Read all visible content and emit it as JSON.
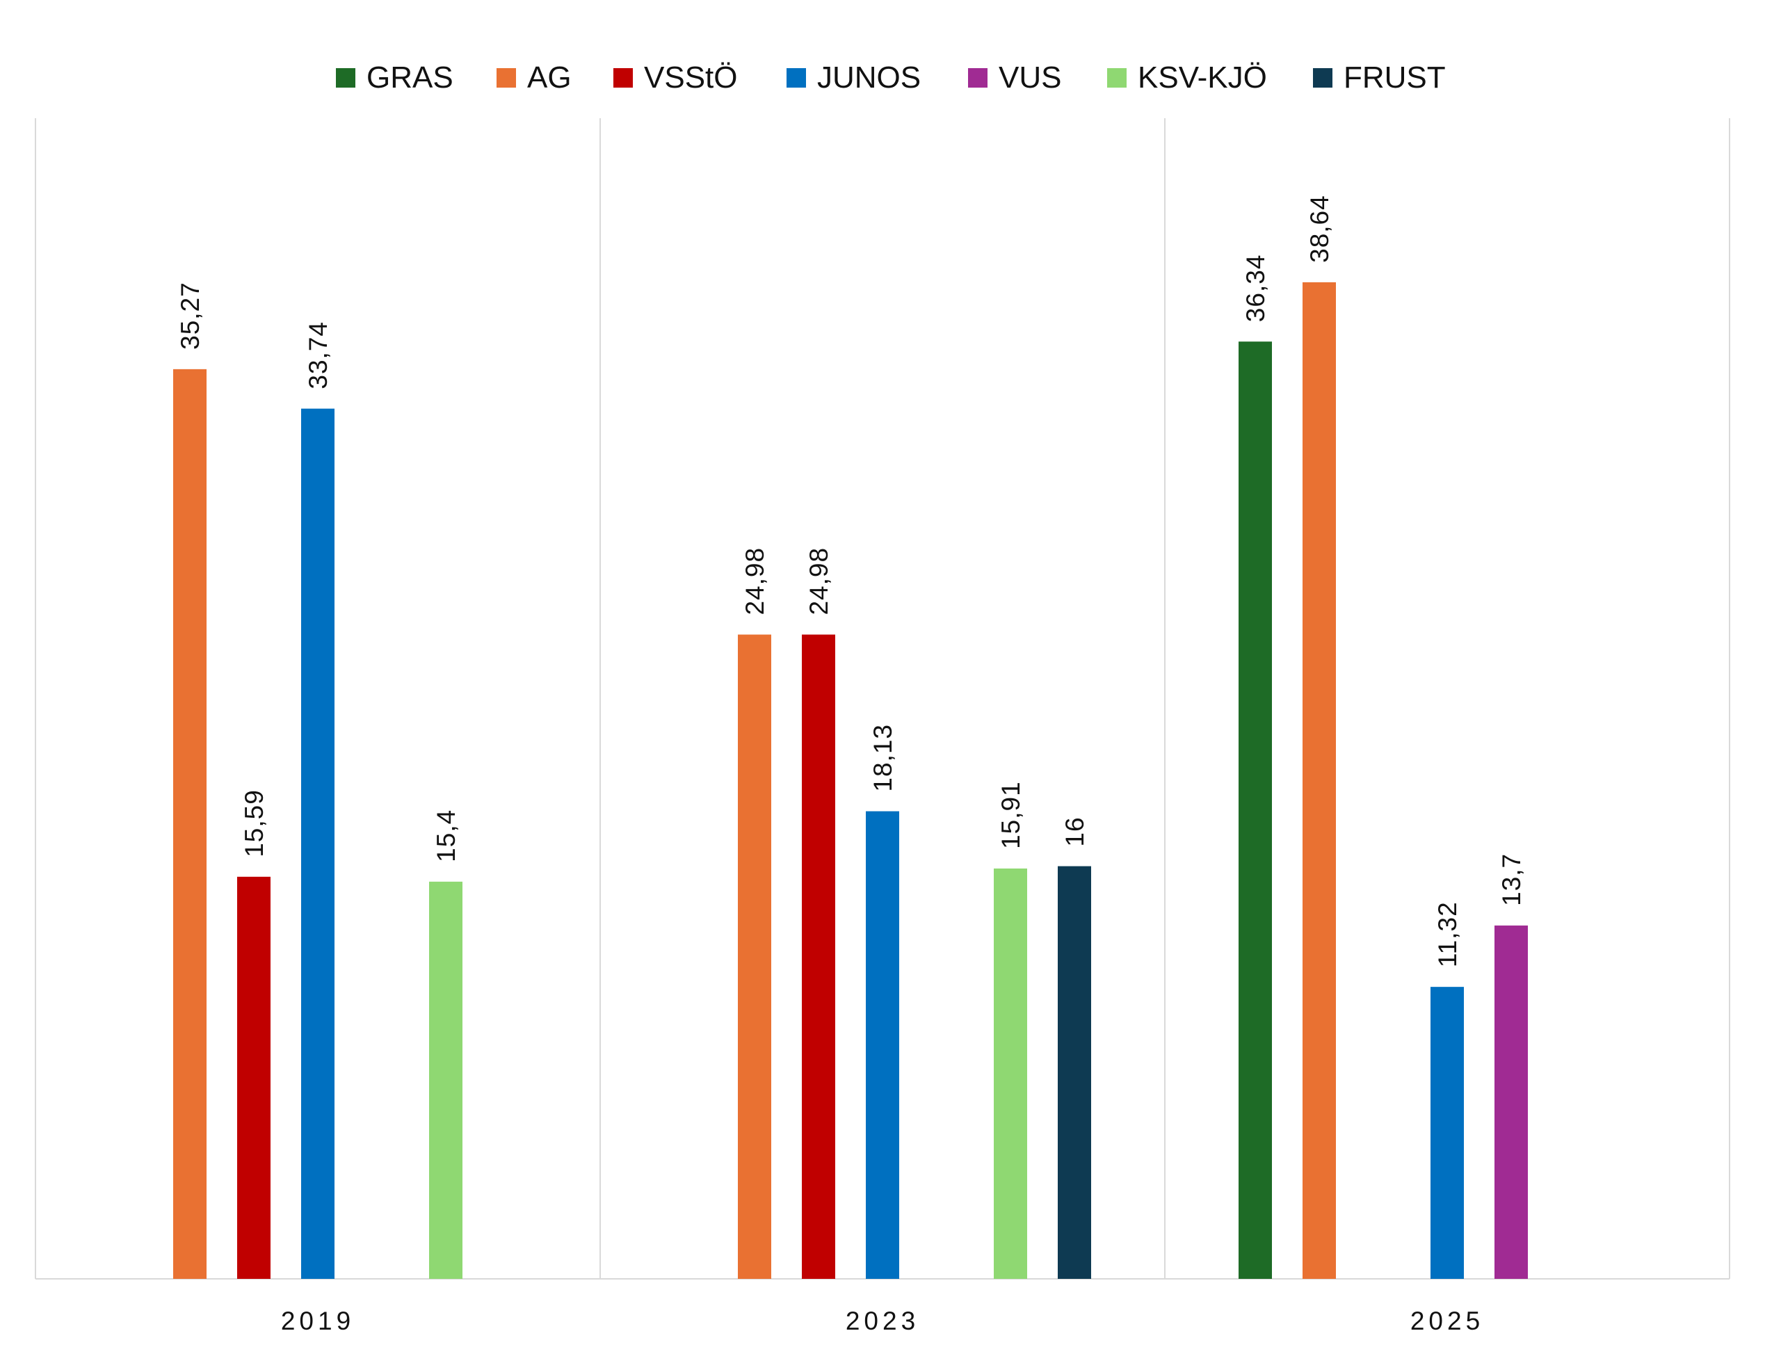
{
  "chart_data": {
    "type": "bar",
    "title": "",
    "xlabel": "",
    "ylabel": "",
    "categories": [
      "2019",
      "2023",
      "2025"
    ],
    "series": [
      {
        "name": "GRAS",
        "color": "#1e6b26",
        "values": [
          null,
          null,
          36.34
        ],
        "labels": [
          null,
          null,
          "36,34"
        ]
      },
      {
        "name": "AG",
        "color": "#e97132",
        "values": [
          35.27,
          24.98,
          38.64
        ],
        "labels": [
          "35,27",
          "24,98",
          "38,64"
        ]
      },
      {
        "name": "VSStÖ",
        "color": "#c00000",
        "values": [
          15.59,
          24.98,
          null
        ],
        "labels": [
          "15,59",
          "24,98",
          null
        ]
      },
      {
        "name": "JUNOS",
        "color": "#0070c0",
        "values": [
          33.74,
          18.13,
          11.32
        ],
        "labels": [
          "33,74",
          "18,13",
          "11,32"
        ]
      },
      {
        "name": "VUS",
        "color": "#a02b93",
        "values": [
          null,
          null,
          13.7
        ],
        "labels": [
          null,
          null,
          "13,7"
        ]
      },
      {
        "name": "KSV-KJÖ",
        "color": "#8fd872",
        "values": [
          15.4,
          15.91,
          null
        ],
        "labels": [
          "15,4",
          "15,91",
          null
        ]
      },
      {
        "name": "FRUST",
        "color": "#0e3a52",
        "values": [
          null,
          16,
          null
        ],
        "labels": [
          null,
          "16",
          null
        ]
      }
    ],
    "ylim": [
      0,
      45
    ],
    "grid": "vertical category separators",
    "legend": "top-center"
  }
}
